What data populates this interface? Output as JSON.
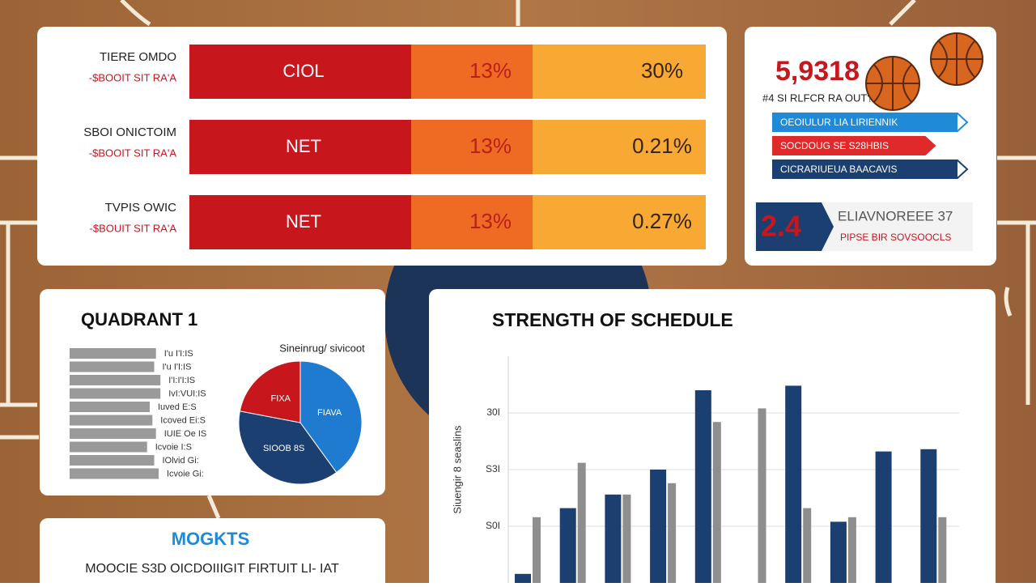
{
  "rows": [
    {
      "title": "TIERE OMDO",
      "subtitle": "-$BOOIT SIT RA'A",
      "label": "CIOL",
      "mid": "13%",
      "right": "30%"
    },
    {
      "title": "SBOI ONICTOIM",
      "subtitle": "-$BOOIT SIT RA'A",
      "label": "NET",
      "mid": "13%",
      "right": "0.21%"
    },
    {
      "title": "TVPIS OWIC",
      "subtitle": "-$BOUIT SIT RA'A",
      "label": "NET",
      "mid": "13%",
      "right": "0.27%"
    }
  ],
  "summary": {
    "big": "5,9318",
    "sub": "#4 SI RLFCR RA OUT?",
    "tags": [
      "OEOIULUR LIA LIRIENNIK",
      "SOCDOUG SE S28HBIS",
      "CICRARIUEUA BAACAVIS"
    ],
    "badge": "2.4",
    "badge_title": "ELIAVNOREEE 37",
    "badge_sub": "PIPSE BIR SOVSOOCLS"
  },
  "quadrant_title": "QUADRANT 1",
  "moments": {
    "title": "MOGKTS",
    "text": "MOOCIE S3D OICDOIIIGIT FIRTUIT LI- IAT"
  },
  "chart_data": [
    {
      "type": "hbar",
      "color": "#9a9a9a",
      "categories": [
        "I'u I'I:IS",
        "I'u I'I:IS",
        "I'I:I'I:IS",
        "IvI:VUI:IS",
        "Iuved E:S",
        "Icoved Ei:S",
        "IUIE Oe IS",
        "Icvoie I:S",
        "IOlvid Gi:",
        "Icvoie Gi:"
      ],
      "values": [
        97,
        95,
        102,
        102,
        90,
        93,
        97,
        87,
        95,
        100
      ]
    },
    {
      "type": "pie",
      "title": "Sineinrug/ sivicoot",
      "categories": [
        "FIAVA",
        "SIOOB 8S",
        "FIXA"
      ],
      "values": [
        40,
        38,
        22
      ],
      "colors": [
        "#1f7bd0",
        "#1b3f70",
        "#c8161d"
      ]
    },
    {
      "type": "bar",
      "title": "STRENGTH OF SCHEDULE",
      "y_label": "Siuengir 8 seaslins",
      "categories": [
        null,
        null,
        null,
        null,
        null,
        null,
        null,
        null,
        null,
        null
      ],
      "series": [
        {
          "color": "#1b3f70",
          "values": [
            4,
            33,
            39,
            50,
            85,
            null,
            87,
            27,
            58,
            59
          ]
        },
        {
          "color": "#8e8e8e",
          "values": [
            29,
            53,
            39,
            44,
            71,
            77,
            33,
            29,
            null,
            29
          ]
        }
      ],
      "ylim": [
        0,
        100
      ],
      "yticks": [
        {
          "value": 25,
          "label": "S0I"
        },
        {
          "value": 50,
          "label": "S3I"
        },
        {
          "value": 75,
          "label": "30I"
        }
      ],
      "grid": true
    }
  ]
}
